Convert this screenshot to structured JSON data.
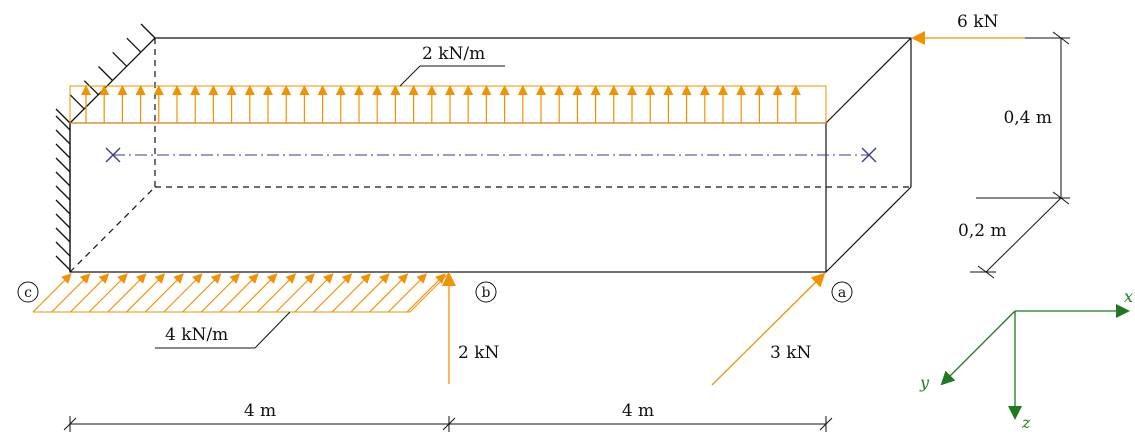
{
  "loads": {
    "top_distributed": "2 kN/m",
    "bottom_distributed": "4 kN/m",
    "axial_force": "6 kN",
    "vertical_force": "2 kN",
    "inclined_force": "3 kN"
  },
  "dimensions": {
    "height": "0,4 m",
    "depth": "0,2 m",
    "span_left": "4 m",
    "span_right": "4 m"
  },
  "nodes": {
    "c": "c",
    "b": "b",
    "a": "a"
  },
  "axes": {
    "x": "x",
    "y": "y",
    "z": "z"
  },
  "colors": {
    "load": "#f39200",
    "axis": "#1f7a1f",
    "centerline": "#3a3a8c",
    "line": "#111111"
  }
}
